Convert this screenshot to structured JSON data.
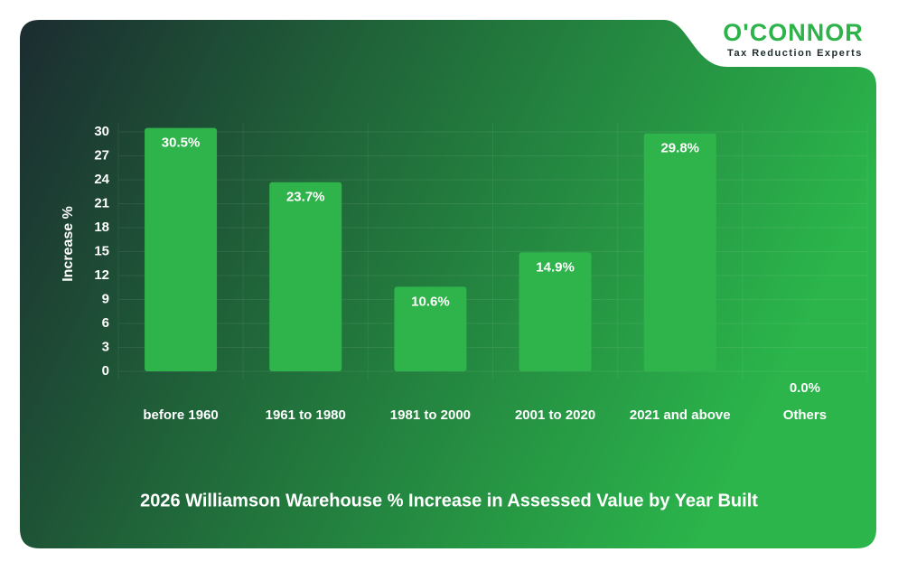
{
  "logo": {
    "name": "O'CONNOR",
    "tagline": "Tax Reduction Experts"
  },
  "chart_data": {
    "type": "bar",
    "title": "2026 Williamson Warehouse % Increase in Assessed Value by Year Built",
    "y_label": "Increase %",
    "categories": [
      "before 1960",
      "1961 to 1980",
      "1981 to 2000",
      "2001 to 2020",
      "2021 and above",
      "Others"
    ],
    "values": [
      30.5,
      23.7,
      10.6,
      14.9,
      29.8,
      0.0
    ],
    "value_labels": [
      "30.5%",
      "23.7%",
      "10.6%",
      "14.9%",
      "29.8%",
      "0.0%"
    ],
    "color": "#2fb44b",
    "ylim": [
      0,
      30
    ],
    "yticks": [
      0,
      3,
      6,
      9,
      12,
      15,
      18,
      21,
      24,
      27,
      30
    ],
    "grid": true
  }
}
